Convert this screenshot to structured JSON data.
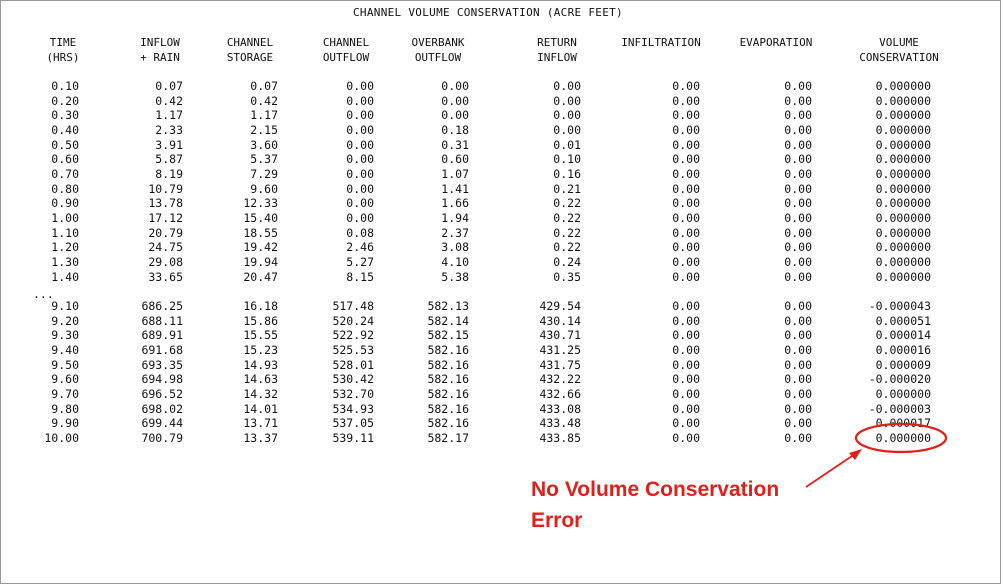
{
  "title": "CHANNEL VOLUME CONSERVATION (ACRE FEET)",
  "headers": [
    {
      "line1": "TIME",
      "line2": "(HRS)"
    },
    {
      "line1": "INFLOW",
      "line2": "+ RAIN"
    },
    {
      "line1": "CHANNEL",
      "line2": "STORAGE"
    },
    {
      "line1": "CHANNEL",
      "line2": "OUTFLOW"
    },
    {
      "line1": "OVERBANK",
      "line2": "OUTFLOW"
    },
    {
      "line1": "RETURN",
      "line2": "INFLOW"
    },
    {
      "line1": "INFILTRATION",
      "line2": ""
    },
    {
      "line1": "EVAPORATION",
      "line2": ""
    },
    {
      "line1": "VOLUME",
      "line2": "CONSERVATION"
    }
  ],
  "rows_top": [
    [
      "0.10",
      "0.07",
      "0.07",
      "0.00",
      "0.00",
      "0.00",
      "0.00",
      "0.00",
      "0.000000"
    ],
    [
      "0.20",
      "0.42",
      "0.42",
      "0.00",
      "0.00",
      "0.00",
      "0.00",
      "0.00",
      "0.000000"
    ],
    [
      "0.30",
      "1.17",
      "1.17",
      "0.00",
      "0.00",
      "0.00",
      "0.00",
      "0.00",
      "0.000000"
    ],
    [
      "0.40",
      "2.33",
      "2.15",
      "0.00",
      "0.18",
      "0.00",
      "0.00",
      "0.00",
      "0.000000"
    ],
    [
      "0.50",
      "3.91",
      "3.60",
      "0.00",
      "0.31",
      "0.01",
      "0.00",
      "0.00",
      "0.000000"
    ],
    [
      "0.60",
      "5.87",
      "5.37",
      "0.00",
      "0.60",
      "0.10",
      "0.00",
      "0.00",
      "0.000000"
    ],
    [
      "0.70",
      "8.19",
      "7.29",
      "0.00",
      "1.07",
      "0.16",
      "0.00",
      "0.00",
      "0.000000"
    ],
    [
      "0.80",
      "10.79",
      "9.60",
      "0.00",
      "1.41",
      "0.21",
      "0.00",
      "0.00",
      "0.000000"
    ],
    [
      "0.90",
      "13.78",
      "12.33",
      "0.00",
      "1.66",
      "0.22",
      "0.00",
      "0.00",
      "0.000000"
    ],
    [
      "1.00",
      "17.12",
      "15.40",
      "0.00",
      "1.94",
      "0.22",
      "0.00",
      "0.00",
      "0.000000"
    ],
    [
      "1.10",
      "20.79",
      "18.55",
      "0.08",
      "2.37",
      "0.22",
      "0.00",
      "0.00",
      "0.000000"
    ],
    [
      "1.20",
      "24.75",
      "19.42",
      "2.46",
      "3.08",
      "0.22",
      "0.00",
      "0.00",
      "0.000000"
    ],
    [
      "1.30",
      "29.08",
      "19.94",
      "5.27",
      "4.10",
      "0.24",
      "0.00",
      "0.00",
      "0.000000"
    ],
    [
      "1.40",
      "33.65",
      "20.47",
      "8.15",
      "5.38",
      "0.35",
      "0.00",
      "0.00",
      "0.000000"
    ]
  ],
  "ellipsis": "...",
  "rows_bottom": [
    [
      "9.10",
      "686.25",
      "16.18",
      "517.48",
      "582.13",
      "429.54",
      "0.00",
      "0.00",
      "-0.000043"
    ],
    [
      "9.20",
      "688.11",
      "15.86",
      "520.24",
      "582.14",
      "430.14",
      "0.00",
      "0.00",
      "0.000051"
    ],
    [
      "9.30",
      "689.91",
      "15.55",
      "522.92",
      "582.15",
      "430.71",
      "0.00",
      "0.00",
      "0.000014"
    ],
    [
      "9.40",
      "691.68",
      "15.23",
      "525.53",
      "582.16",
      "431.25",
      "0.00",
      "0.00",
      "0.000016"
    ],
    [
      "9.50",
      "693.35",
      "14.93",
      "528.01",
      "582.16",
      "431.75",
      "0.00",
      "0.00",
      "0.000009"
    ],
    [
      "9.60",
      "694.98",
      "14.63",
      "530.42",
      "582.16",
      "432.22",
      "0.00",
      "0.00",
      "-0.000020"
    ],
    [
      "9.70",
      "696.52",
      "14.32",
      "532.70",
      "582.16",
      "432.66",
      "0.00",
      "0.00",
      "0.000000"
    ],
    [
      "9.80",
      "698.02",
      "14.01",
      "534.93",
      "582.16",
      "433.08",
      "0.00",
      "0.00",
      "-0.000003"
    ],
    [
      "9.90",
      "699.44",
      "13.71",
      "537.05",
      "582.16",
      "433.48",
      "0.00",
      "0.00",
      "0.000017"
    ],
    [
      "10.00",
      "700.79",
      "13.37",
      "539.11",
      "582.17",
      "433.85",
      "0.00",
      "0.00",
      "0.000000"
    ]
  ],
  "annotation": {
    "line1": "No Volume Conservation",
    "line2": "Error",
    "color": "#e0201b"
  }
}
